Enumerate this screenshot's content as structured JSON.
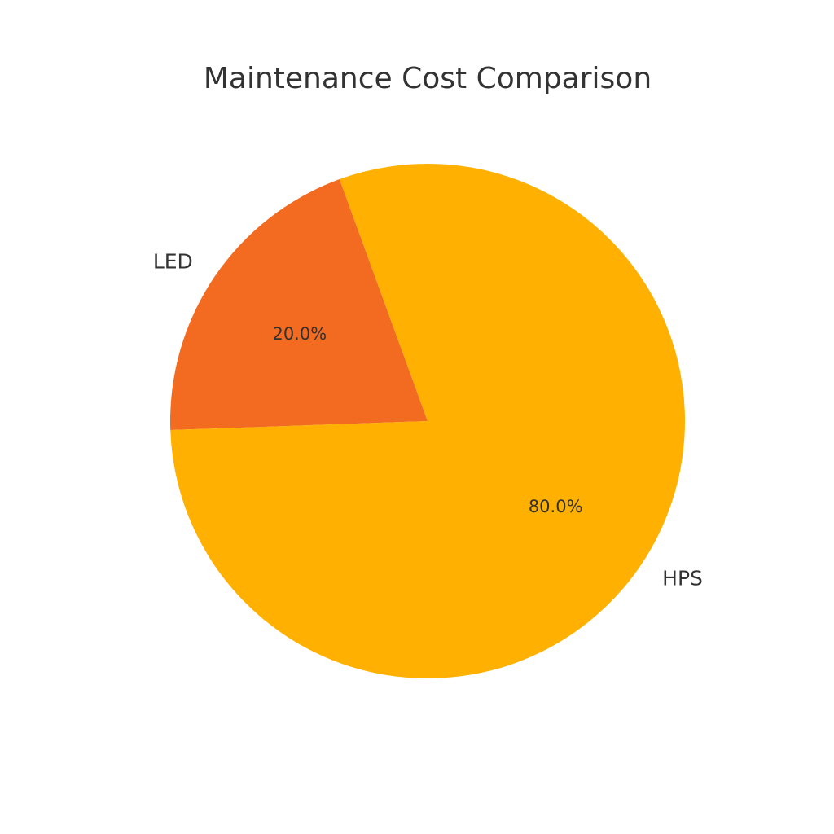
{
  "chart_data": {
    "type": "pie",
    "title": "Maintenance Cost Comparison",
    "categories": [
      "LED",
      "HPS"
    ],
    "values": [
      20.0,
      80.0
    ],
    "percent_labels": [
      "20.0%",
      "80.0%"
    ],
    "colors": [
      "#F26B21",
      "#FFB000"
    ],
    "start_angle_deg": 110,
    "direction": "counterclockwise",
    "background": "#ffffff"
  }
}
